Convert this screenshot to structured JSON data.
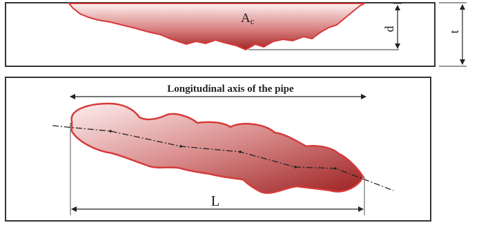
{
  "cross_section": {
    "area_label_main": "A",
    "area_label_sub": "c",
    "depth_label": "d",
    "thickness_label": "t"
  },
  "plan_view": {
    "axis_label": "Longitudinal axis of the pipe",
    "length_label": "L"
  },
  "colors": {
    "defect_stroke": "#d63a3a",
    "defect_fill_light": "#fbe7e7",
    "defect_fill_dark": "#9e1f1f",
    "frame": "#333333",
    "line": "#222222"
  }
}
